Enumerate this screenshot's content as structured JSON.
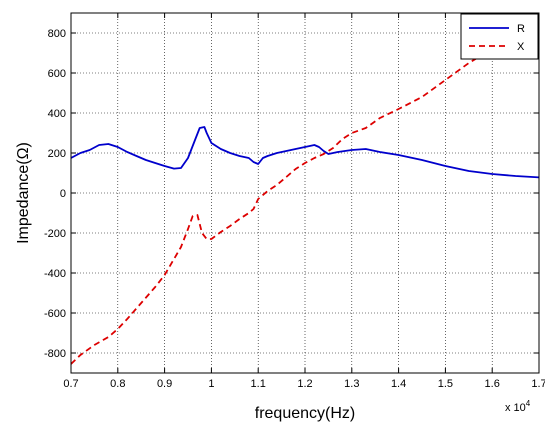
{
  "chart_data": {
    "type": "line",
    "xlabel": "frequency(Hz)",
    "ylabel": "Impedance(Ω)",
    "x_multiplier_label": "x 10",
    "x_multiplier_exponent": "4",
    "xlim": [
      0.7,
      1.7
    ],
    "ylim": [
      -900,
      900
    ],
    "xticks": [
      "0.7",
      "0.8",
      "0.9",
      "1",
      "1.1",
      "1.2",
      "1.3",
      "1.4",
      "1.5",
      "1.6",
      "1.7"
    ],
    "xtick_values": [
      0.7,
      0.8,
      0.9,
      1.0,
      1.1,
      1.2,
      1.3,
      1.4,
      1.5,
      1.6,
      1.7
    ],
    "yticks": [
      "800",
      "600",
      "400",
      "200",
      "0",
      "-200",
      "-400",
      "-600",
      "-800"
    ],
    "ytick_values": [
      800,
      600,
      400,
      200,
      0,
      -200,
      -400,
      -600,
      -800
    ],
    "grid": true,
    "legend_position": "top-right",
    "series": [
      {
        "name": "R",
        "color": "#0000cc",
        "style": "solid",
        "x": [
          0.7,
          0.72,
          0.74,
          0.76,
          0.78,
          0.8,
          0.82,
          0.84,
          0.86,
          0.88,
          0.9,
          0.92,
          0.935,
          0.95,
          0.965,
          0.975,
          0.985,
          0.99,
          1.0,
          1.02,
          1.04,
          1.06,
          1.08,
          1.09,
          1.1,
          1.11,
          1.12,
          1.14,
          1.16,
          1.18,
          1.2,
          1.22,
          1.23,
          1.24,
          1.25,
          1.27,
          1.3,
          1.33,
          1.36,
          1.4,
          1.45,
          1.5,
          1.55,
          1.6,
          1.65,
          1.7
        ],
        "values": [
          175,
          200,
          215,
          240,
          245,
          230,
          205,
          185,
          165,
          150,
          135,
          122,
          125,
          175,
          265,
          325,
          330,
          300,
          250,
          220,
          200,
          185,
          175,
          155,
          145,
          175,
          185,
          200,
          210,
          220,
          230,
          240,
          230,
          210,
          195,
          205,
          215,
          220,
          205,
          190,
          165,
          135,
          110,
          95,
          85,
          78
        ]
      },
      {
        "name": "X",
        "color": "#dd0000",
        "style": "dashed",
        "x": [
          0.7,
          0.72,
          0.75,
          0.78,
          0.8,
          0.82,
          0.85,
          0.88,
          0.9,
          0.92,
          0.935,
          0.95,
          0.96,
          0.97,
          0.98,
          0.99,
          1.0,
          1.02,
          1.04,
          1.06,
          1.08,
          1.09,
          1.1,
          1.12,
          1.14,
          1.16,
          1.18,
          1.2,
          1.22,
          1.24,
          1.26,
          1.28,
          1.3,
          1.33,
          1.36,
          1.4,
          1.45,
          1.5,
          1.55,
          1.6,
          1.65,
          1.68,
          1.7
        ],
        "values": [
          -855,
          -810,
          -760,
          -720,
          -680,
          -630,
          -550,
          -470,
          -410,
          -330,
          -270,
          -180,
          -115,
          -110,
          -200,
          -230,
          -230,
          -195,
          -165,
          -130,
          -100,
          -80,
          -30,
          10,
          40,
          80,
          120,
          150,
          175,
          195,
          225,
          270,
          300,
          325,
          375,
          420,
          480,
          565,
          650,
          720,
          800,
          850,
          880
        ]
      }
    ]
  }
}
